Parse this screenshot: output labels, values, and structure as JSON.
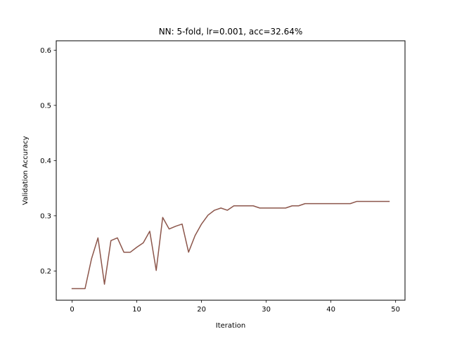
{
  "chart_data": {
    "type": "line",
    "title": "NN: 5-fold, lr=0.001, acc=32.64%",
    "xlabel": "Iteration",
    "ylabel": "Validation Accuracy",
    "xlim": [
      -2.45,
      51.45
    ],
    "ylim": [
      0.147,
      0.617
    ],
    "xticks": [
      0,
      10,
      20,
      30,
      40,
      50
    ],
    "yticks": [
      0.2,
      0.3,
      0.4,
      0.5,
      0.6
    ],
    "xtick_labels": [
      "0",
      "10",
      "20",
      "30",
      "40",
      "50"
    ],
    "ytick_labels": [
      "0.2",
      "0.3",
      "0.4",
      "0.5",
      "0.6"
    ],
    "grid": false,
    "series": [
      {
        "color": "#8c564b",
        "x": [
          0,
          1,
          2,
          3,
          4,
          5,
          6,
          7,
          8,
          9,
          10,
          11,
          12,
          13,
          14,
          15,
          16,
          17,
          18,
          19,
          20,
          21,
          22,
          23,
          24,
          25,
          26,
          27,
          28,
          29,
          30,
          31,
          32,
          33,
          34,
          35,
          36,
          37,
          38,
          39,
          40,
          41,
          42,
          43,
          44,
          45,
          46,
          47,
          48,
          49
        ],
        "y": [
          0.168,
          0.168,
          0.168,
          0.222,
          0.26,
          0.176,
          0.255,
          0.26,
          0.234,
          0.234,
          0.243,
          0.251,
          0.272,
          0.201,
          0.297,
          0.276,
          0.281,
          0.285,
          0.234,
          0.264,
          0.285,
          0.301,
          0.31,
          0.314,
          0.31,
          0.318,
          0.318,
          0.318,
          0.318,
          0.314,
          0.314,
          0.314,
          0.314,
          0.314,
          0.318,
          0.318,
          0.322,
          0.322,
          0.322,
          0.322,
          0.322,
          0.322,
          0.322,
          0.322,
          0.326,
          0.326,
          0.326,
          0.326,
          0.326,
          0.326
        ]
      }
    ]
  }
}
